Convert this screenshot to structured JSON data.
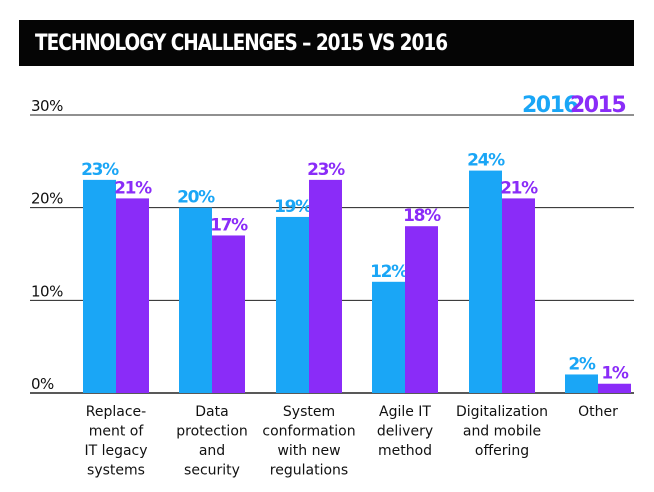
{
  "chart_data": {
    "type": "bar",
    "title": "TECHNOLOGY CHALLENGES – 2015 VS 2016",
    "categories": [
      [
        "Replace-",
        "ment of",
        "IT legacy",
        "systems"
      ],
      [
        "Data",
        "protection",
        "and",
        "security"
      ],
      [
        "System",
        "conformation",
        "with new",
        "regulations"
      ],
      [
        "Agile IT",
        "delivery",
        "method"
      ],
      [
        "Digitalization",
        "and mobile",
        "offering"
      ],
      [
        "Other"
      ]
    ],
    "series": [
      {
        "name": "2016",
        "color": "#1aa6f6",
        "values": [
          23,
          20,
          19,
          12,
          24,
          2
        ]
      },
      {
        "name": "2015",
        "color": "#8a2cf8",
        "values": [
          21,
          17,
          23,
          18,
          21,
          1
        ]
      }
    ],
    "value_suffix": "%",
    "yticks": [
      "0%",
      "10%",
      "20%",
      "30%"
    ],
    "ylim": [
      0,
      30
    ],
    "grid": true,
    "legend_position": "top-right"
  }
}
